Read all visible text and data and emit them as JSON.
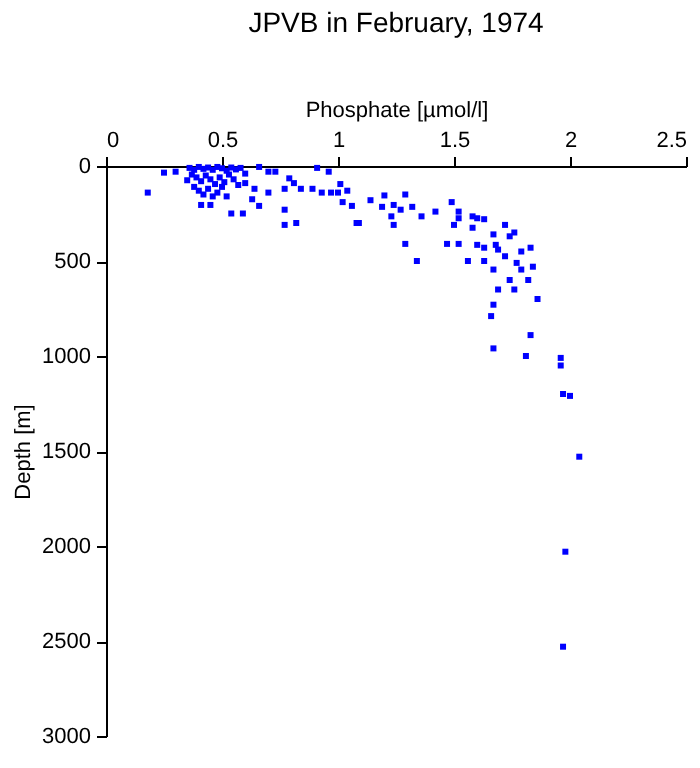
{
  "chart_data": {
    "type": "scatter",
    "title": "JPVB in February, 1974",
    "xlabel": "Phosphate [µmol/l]",
    "ylabel": "Depth [m]",
    "xlim": [
      0,
      2.5
    ],
    "xticks": [
      0,
      0.5,
      1,
      1.5,
      2,
      2.5
    ],
    "ylim": [
      3000,
      0
    ],
    "yticks": [
      0,
      500,
      1000,
      1500,
      2000,
      2500,
      3000
    ],
    "grid": false,
    "marker": "square",
    "x": [
      0.25,
      0.3,
      0.18,
      0.41,
      0.45,
      0.54,
      0.59,
      0.66,
      0.7,
      0.73,
      0.6,
      0.64,
      0.63,
      0.66,
      0.7,
      0.79,
      0.77,
      0.77,
      0.77,
      0.82,
      0.81,
      0.84,
      0.91,
      0.96,
      0.89,
      0.93,
      0.97,
      1.0,
      1.01,
      1.04,
      1.02,
      1.06,
      1.09,
      1.14,
      1.2,
      1.19,
      1.23,
      1.08,
      1.24,
      1.29,
      1.27,
      1.24,
      1.32,
      1.36,
      1.42,
      1.49,
      1.52,
      1.52,
      1.5,
      1.52,
      1.47,
      1.58,
      1.58,
      1.6,
      1.63,
      1.72,
      1.74,
      1.76,
      1.67,
      1.6,
      1.63,
      1.68,
      1.69,
      1.79,
      1.83,
      1.72,
      1.77,
      1.84,
      1.79,
      1.82,
      1.74,
      1.56,
      1.63,
      1.67,
      1.34,
      1.29,
      1.69,
      1.76,
      1.67,
      1.66,
      1.83,
      1.67,
      1.81,
      1.86,
      1.96,
      1.96,
      1.97,
      2.0,
      2.04,
      1.98,
      1.97,
      0.36,
      0.38,
      0.4,
      0.42,
      0.44,
      0.46,
      0.48,
      0.5,
      0.52,
      0.54,
      0.56,
      0.58,
      0.37,
      0.39,
      0.41,
      0.43,
      0.45,
      0.47,
      0.49,
      0.51,
      0.53,
      0.55,
      0.38,
      0.4,
      0.44,
      0.48,
      0.5,
      0.57,
      0.35,
      0.6,
      0.46,
      0.52,
      0.42
    ],
    "series": [
      {
        "color": "#0000ff",
        "values": [
          35,
          30,
          140,
          205,
          205,
          250,
          250,
          5,
          30,
          30,
          90,
          120,
          175,
          210,
          140,
          65,
          120,
          230,
          310,
          300,
          90,
          120,
          10,
          30,
          120,
          140,
          140,
          140,
          95,
          130,
          190,
          210,
          300,
          180,
          155,
          215,
          265,
          300,
          205,
          150,
          230,
          310,
          215,
          265,
          240,
          190,
          240,
          275,
          310,
          410,
          410,
          265,
          325,
          275,
          280,
          310,
          370,
          350,
          360,
          415,
          430,
          415,
          440,
          450,
          430,
          475,
          510,
          530,
          545,
          600,
          600,
          500,
          500,
          545,
          500,
          410,
          650,
          650,
          730,
          790,
          890,
          960,
          1000,
          700,
          1010,
          1050,
          1200,
          1210,
          1530,
          2030,
          2530,
          10,
          20,
          5,
          15,
          8,
          20,
          5,
          12,
          25,
          8,
          18,
          10,
          45,
          60,
          80,
          50,
          70,
          95,
          60,
          85,
          45,
          70,
          110,
          130,
          120,
          140,
          110,
          100,
          75,
          40,
          160,
          160,
          150
        ]
      }
    ]
  }
}
